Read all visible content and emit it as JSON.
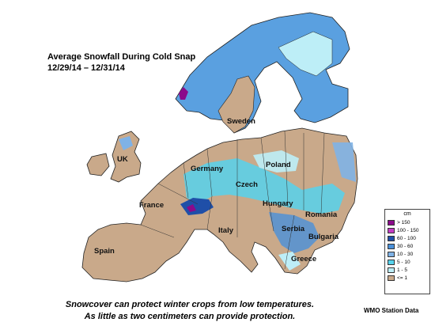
{
  "title": {
    "line1": "Average Snowfall During Cold Snap",
    "line2": "12/29/14 – 12/31/14"
  },
  "country_labels": [
    "UK",
    "France",
    "Spain",
    "Germany",
    "Sweden",
    "Poland",
    "Czech",
    "Hungary",
    "Romania",
    "Italy",
    "Serbia",
    "Bulgaria",
    "Greece"
  ],
  "legend": {
    "unit": "cm",
    "items": [
      {
        "label": "> 150",
        "color": "#8b0a8b"
      },
      {
        "label": "100 - 150",
        "color": "#c43cc4"
      },
      {
        "label": "60 - 100",
        "color": "#1f4fa8"
      },
      {
        "label": "30 - 60",
        "color": "#4a90d9"
      },
      {
        "label": "10 - 30",
        "color": "#7fb2e6"
      },
      {
        "label": "5 - 10",
        "color": "#56d2ec"
      },
      {
        "label": "1 - 5",
        "color": "#bdeef7"
      },
      {
        "label": "<= 1",
        "color": "#c9a98a"
      }
    ]
  },
  "caption": {
    "line1": "Snowcover can protect winter crops from low temperatures.",
    "line2": "As little as two centimeters can provide protection."
  },
  "source": "WMO Station Data"
}
